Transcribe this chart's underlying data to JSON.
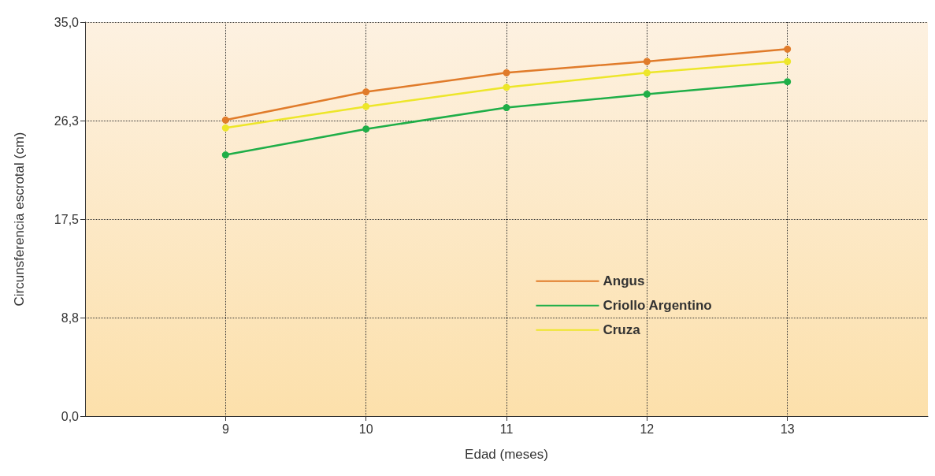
{
  "chart_data": {
    "type": "line",
    "xlabel": "Edad (meses)",
    "ylabel": "Circunsferencia escrotal (cm)",
    "x": [
      9,
      10,
      11,
      12,
      13
    ],
    "series": [
      {
        "name": "Angus",
        "color": "#e07b2a",
        "values": [
          26.3,
          28.8,
          30.5,
          31.5,
          32.6
        ]
      },
      {
        "name": "Criollo Argentino",
        "color": "#1fae48",
        "values": [
          23.2,
          25.5,
          27.4,
          28.6,
          29.7
        ]
      },
      {
        "name": "Cruza",
        "color": "#ede62a",
        "values": [
          25.6,
          27.5,
          29.2,
          30.5,
          31.5
        ]
      }
    ],
    "xlim": [
      8,
      14
    ],
    "xticks": [
      9,
      10,
      11,
      12,
      13
    ],
    "ylim": [
      0,
      35
    ],
    "yticks": [
      {
        "value": 0,
        "label": "0,0"
      },
      {
        "value": 8.75,
        "label": "8,8"
      },
      {
        "value": 17.5,
        "label": "17,5"
      },
      {
        "value": 26.25,
        "label": "26,3"
      },
      {
        "value": 35,
        "label": "35,0"
      }
    ],
    "grid": true,
    "legend": "center",
    "marker": "circle",
    "line_style": "solid"
  }
}
